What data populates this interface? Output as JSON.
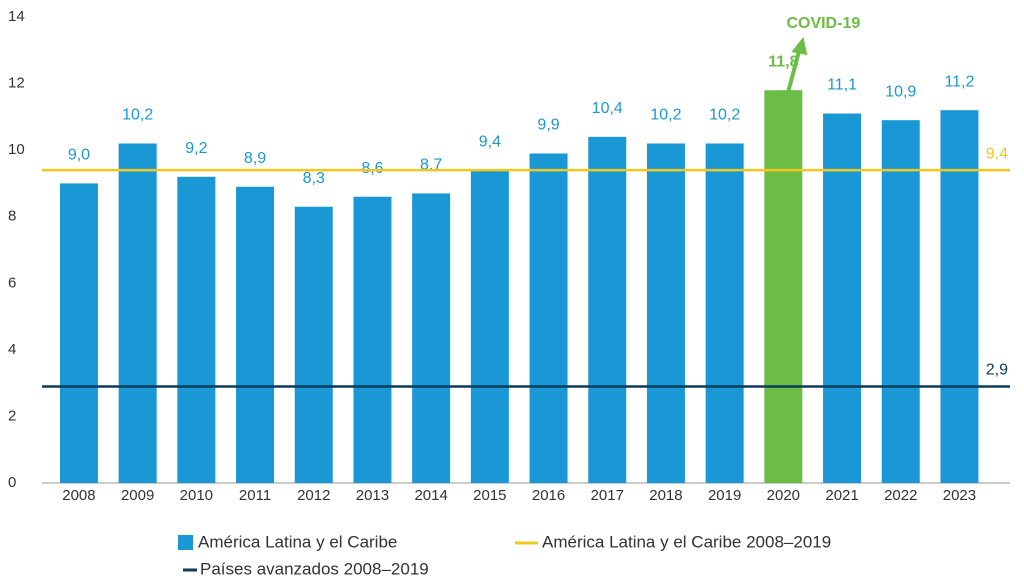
{
  "chart_data": {
    "type": "bar",
    "categories": [
      "2008",
      "2009",
      "2010",
      "2011",
      "2012",
      "2013",
      "2014",
      "2015",
      "2016",
      "2017",
      "2018",
      "2019",
      "2020",
      "2021",
      "2022",
      "2023"
    ],
    "series": [
      {
        "name": "América Latina y el Caribe",
        "color": "#1a98d5",
        "colors": [
          "#1a98d5",
          "#1a98d5",
          "#1a98d5",
          "#1a98d5",
          "#1a98d5",
          "#1a98d5",
          "#1a98d5",
          "#1a98d5",
          "#1a98d5",
          "#1a98d5",
          "#1a98d5",
          "#1a98d5",
          "#6cbd45",
          "#1a98d5",
          "#1a98d5",
          "#1a98d5"
        ],
        "values": [
          9.0,
          10.2,
          9.2,
          8.9,
          8.3,
          8.6,
          8.7,
          9.4,
          9.9,
          10.4,
          10.2,
          10.2,
          11.8,
          11.1,
          10.9,
          11.2
        ],
        "value_labels": [
          "9,0",
          "10,2",
          "9,2",
          "8,9",
          "8,3",
          "8,6",
          "8,7",
          "9,4",
          "9,9",
          "10,4",
          "10,2",
          "10,2",
          "11,8",
          "11,1",
          "10,9",
          "11,2"
        ]
      }
    ],
    "reference_lines": [
      {
        "name": "América Latina y el Caribe 2008–2019",
        "color": "#f2c81e",
        "value": 9.4,
        "value_label": "9,4"
      },
      {
        "name": "Países avanzados 2008–2019",
        "color": "#0d3b5c",
        "value": 2.9,
        "value_label": "2,9"
      }
    ],
    "annotation": {
      "text": "COVID-19",
      "category": "2020",
      "color": "#6cbd45"
    },
    "ylim": [
      0,
      14
    ],
    "yticks": [
      0,
      2,
      4,
      6,
      8,
      10,
      12,
      14
    ]
  }
}
